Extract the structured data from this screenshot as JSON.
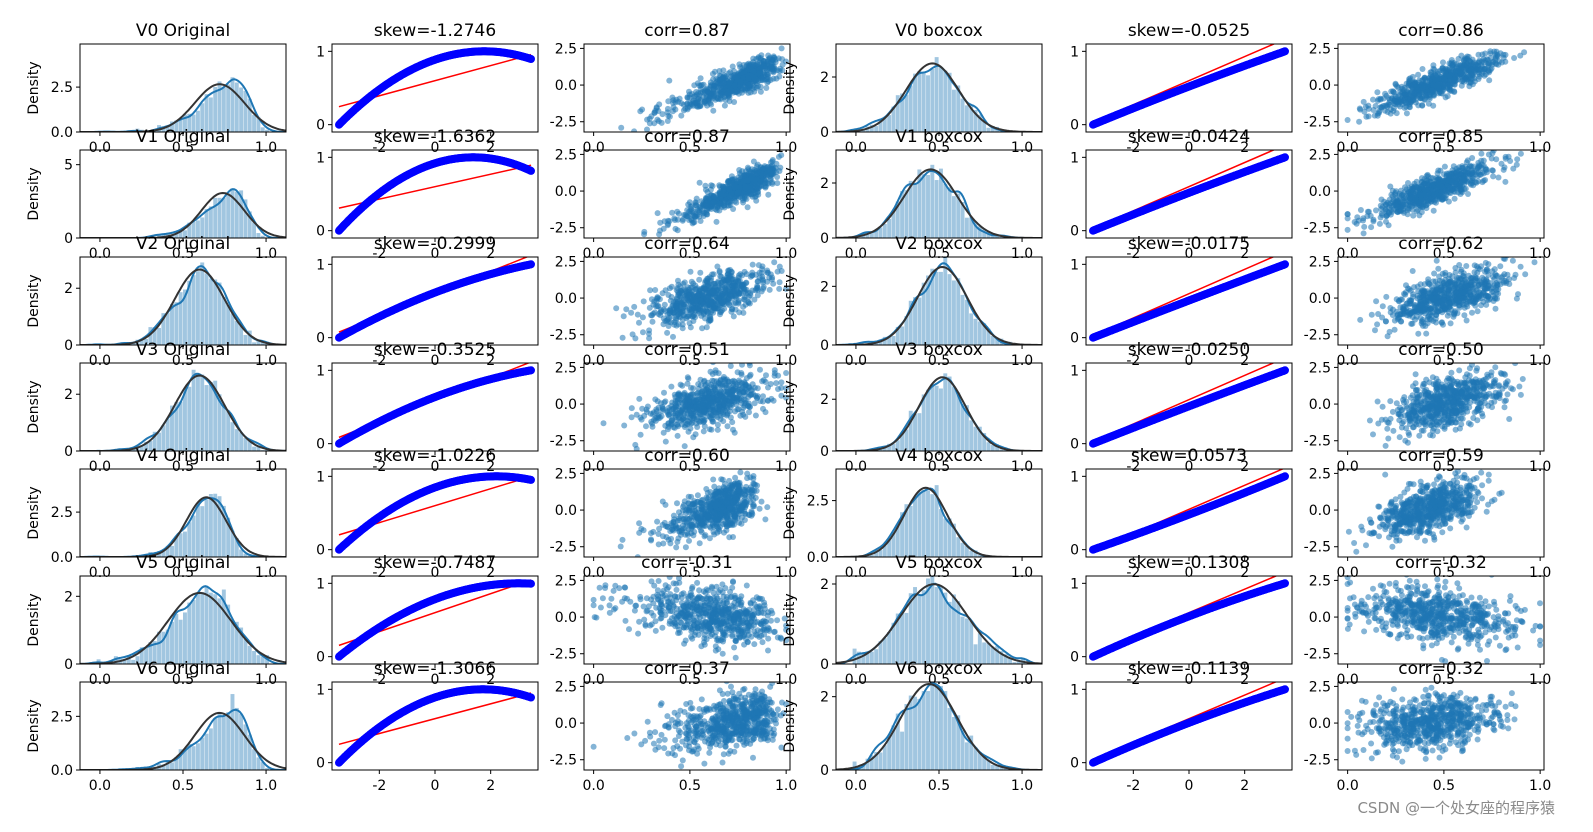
{
  "chart_data": {
    "type": "grid",
    "layout": {
      "rows": 7,
      "cols": 6
    },
    "variables": [
      "V0",
      "V1",
      "V2",
      "V3",
      "V4",
      "V5",
      "V6"
    ],
    "density_ylabel": "Density",
    "colors": {
      "hist": "#1f77b4",
      "kde": "#1f77b4",
      "norm_fit": "#333333",
      "qq_points": "#0000ff",
      "qq_line": "#ff0000",
      "scatter": "#1f77b4"
    },
    "column_types": [
      "hist_kde_norm",
      "probplot",
      "scatter",
      "hist_kde_norm",
      "probplot",
      "scatter"
    ],
    "rows": [
      {
        "var": "V0",
        "original": {
          "title": "V0 Original",
          "skew_title": "skew=-1.2746",
          "corr_title": "corr=0.87",
          "mean": 0.72,
          "std": 0.15,
          "skew": -1.2746,
          "corr": 0.87,
          "density_yticks": [
            "0.0",
            "2.5"
          ],
          "density_ymax": 4.9,
          "qq_yticks": [
            "0",
            "1"
          ],
          "scatter_yticks": [
            "-2.5",
            "0.0",
            "2.5"
          ],
          "xticks": [
            "0.0",
            "0.5",
            "1.0"
          ],
          "qq_xticks": [
            "-2",
            "0",
            "2"
          ]
        },
        "boxcox": {
          "title": "V0 boxcox",
          "skew_title": "skew=-0.0525",
          "corr_title": "corr=0.86",
          "mean": 0.46,
          "std": 0.16,
          "skew": -0.0525,
          "corr": 0.86,
          "density_yticks": [
            "0",
            "2"
          ],
          "density_ymax": 3.2,
          "qq_yticks": [
            "0",
            "1"
          ],
          "scatter_yticks": [
            "-2.5",
            "0.0",
            "2.5"
          ],
          "xticks": [
            "0.0",
            "0.5",
            "1.0"
          ],
          "qq_xticks": [
            "-2",
            "0",
            "2"
          ]
        }
      },
      {
        "var": "V1",
        "original": {
          "title": "V1 Original",
          "skew_title": "skew=-1.6362",
          "corr_title": "corr=0.87",
          "mean": 0.74,
          "std": 0.13,
          "skew": -1.6362,
          "corr": 0.87,
          "density_yticks": [
            "0",
            "5"
          ],
          "density_ymax": 6.0,
          "qq_yticks": [
            "0",
            "1"
          ],
          "scatter_yticks": [
            "-2.5",
            "0.0",
            "2.5"
          ],
          "xticks": [
            "0.0",
            "0.5",
            "1.0"
          ],
          "qq_xticks": [
            "-2",
            "0",
            "2"
          ]
        },
        "boxcox": {
          "title": "V1 boxcox",
          "skew_title": "skew=-0.0424",
          "corr_title": "corr=0.85",
          "mean": 0.45,
          "std": 0.16,
          "skew": -0.0424,
          "corr": 0.85,
          "density_yticks": [
            "0",
            "2"
          ],
          "density_ymax": 3.2,
          "qq_yticks": [
            "0",
            "1"
          ],
          "scatter_yticks": [
            "-2.5",
            "0.0",
            "2.5"
          ],
          "xticks": [
            "0.0",
            "0.5",
            "1.0"
          ],
          "qq_xticks": [
            "-2",
            "0",
            "2"
          ]
        }
      },
      {
        "var": "V2",
        "original": {
          "title": "V2 Original",
          "skew_title": "skew=-0.2999",
          "corr_title": "corr=0.64",
          "mean": 0.6,
          "std": 0.15,
          "skew": -0.2999,
          "corr": 0.64,
          "density_yticks": [
            "0",
            "2"
          ],
          "density_ymax": 3.1,
          "qq_yticks": [
            "0",
            "1"
          ],
          "scatter_yticks": [
            "-2.5",
            "0.0",
            "2.5"
          ],
          "xticks": [
            "0.0",
            "0.5",
            "1.0"
          ],
          "qq_xticks": [
            "-2",
            "0",
            "2"
          ]
        },
        "boxcox": {
          "title": "V2 boxcox",
          "skew_title": "skew=-0.0175",
          "corr_title": "corr=0.62",
          "mean": 0.52,
          "std": 0.15,
          "skew": -0.0175,
          "corr": 0.62,
          "density_yticks": [
            "0",
            "2"
          ],
          "density_ymax": 3.0,
          "qq_yticks": [
            "0",
            "1"
          ],
          "scatter_yticks": [
            "-2.5",
            "0.0",
            "2.5"
          ],
          "xticks": [
            "0.0",
            "0.5",
            "1.0"
          ],
          "qq_xticks": [
            "-2",
            "0",
            "2"
          ]
        }
      },
      {
        "var": "V3",
        "original": {
          "title": "V3 Original",
          "skew_title": "skew=-0.3525",
          "corr_title": "corr=0.51",
          "mean": 0.6,
          "std": 0.15,
          "skew": -0.3525,
          "corr": 0.51,
          "density_yticks": [
            "0",
            "2"
          ],
          "density_ymax": 3.1,
          "qq_yticks": [
            "0",
            "1"
          ],
          "scatter_yticks": [
            "-2.5",
            "0.0",
            "2.5"
          ],
          "xticks": [
            "0.0",
            "0.5",
            "1.0"
          ],
          "qq_xticks": [
            "-2",
            "0",
            "2"
          ]
        },
        "boxcox": {
          "title": "V3 boxcox",
          "skew_title": "skew=-0.0250",
          "corr_title": "corr=0.50",
          "mean": 0.52,
          "std": 0.14,
          "skew": -0.025,
          "corr": 0.5,
          "density_yticks": [
            "0",
            "2"
          ],
          "density_ymax": 3.4,
          "qq_yticks": [
            "0",
            "1"
          ],
          "scatter_yticks": [
            "-2.5",
            "0.0",
            "2.5"
          ],
          "xticks": [
            "0.0",
            "0.5",
            "1.0"
          ],
          "qq_xticks": [
            "-2",
            "0",
            "2"
          ]
        }
      },
      {
        "var": "V4",
        "original": {
          "title": "V4 Original",
          "skew_title": "skew=-1.0226",
          "corr_title": "corr=0.60",
          "mean": 0.64,
          "std": 0.12,
          "skew": -1.0226,
          "corr": 0.6,
          "density_yticks": [
            "0.0",
            "2.5"
          ],
          "density_ymax": 4.9,
          "qq_yticks": [
            "0",
            "1"
          ],
          "scatter_yticks": [
            "-2.5",
            "0.0",
            "2.5"
          ],
          "xticks": [
            "0.0",
            "0.5",
            "1.0"
          ],
          "qq_xticks": [
            "-2",
            "0",
            "2"
          ]
        },
        "boxcox": {
          "title": "V4 boxcox",
          "skew_title": "skew=0.0573",
          "corr_title": "corr=0.59",
          "mean": 0.42,
          "std": 0.13,
          "skew": 0.0573,
          "corr": 0.59,
          "density_yticks": [
            "0.0",
            "2.5"
          ],
          "density_ymax": 3.9,
          "qq_yticks": [
            "0",
            "1"
          ],
          "scatter_yticks": [
            "-2.5",
            "0.0",
            "2.5"
          ],
          "xticks": [
            "0.0",
            "0.5",
            "1.0"
          ],
          "qq_xticks": [
            "-2",
            "0",
            "2"
          ]
        }
      },
      {
        "var": "V5",
        "original": {
          "title": "V5 Original",
          "skew_title": "skew=-0.7487",
          "corr_title": "corr=-0.31",
          "mean": 0.6,
          "std": 0.19,
          "skew": -0.7487,
          "corr": -0.31,
          "density_yticks": [
            "0",
            "2"
          ],
          "density_ymax": 2.6,
          "qq_yticks": [
            "0",
            "1"
          ],
          "scatter_yticks": [
            "-2.5",
            "0.0",
            "2.5"
          ],
          "xticks": [
            "0.0",
            "0.5",
            "1.0"
          ],
          "qq_xticks": [
            "-2",
            "0",
            "2"
          ]
        },
        "boxcox": {
          "title": "V5 boxcox",
          "skew_title": "skew=-0.1308",
          "corr_title": "corr=-0.32",
          "mean": 0.47,
          "std": 0.2,
          "skew": -0.1308,
          "corr": -0.32,
          "density_yticks": [
            "0",
            "2"
          ],
          "density_ymax": 2.2,
          "qq_yticks": [
            "0",
            "1"
          ],
          "scatter_yticks": [
            "-2.5",
            "0.0",
            "2.5"
          ],
          "xticks": [
            "0.0",
            "0.5",
            "1.0"
          ],
          "qq_xticks": [
            "-2",
            "0",
            "2"
          ]
        }
      },
      {
        "var": "V6",
        "original": {
          "title": "V6 Original",
          "skew_title": "skew=-1.3066",
          "corr_title": "corr=0.37",
          "mean": 0.72,
          "std": 0.15,
          "skew": -1.3066,
          "corr": 0.37,
          "density_yticks": [
            "0.0",
            "2.5"
          ],
          "density_ymax": 4.1,
          "qq_yticks": [
            "0",
            "1"
          ],
          "scatter_yticks": [
            "-2.5",
            "0.0",
            "2.5"
          ],
          "xticks": [
            "0.0",
            "0.5",
            "1.0"
          ],
          "qq_xticks": [
            "-2",
            "0",
            "2"
          ]
        },
        "boxcox": {
          "title": "V6 boxcox",
          "skew_title": "skew=-0.1139",
          "corr_title": "corr=0.32",
          "mean": 0.44,
          "std": 0.17,
          "skew": -0.1139,
          "corr": 0.32,
          "density_yticks": [
            "0",
            "2"
          ],
          "density_ymax": 2.4,
          "qq_yticks": [
            "0",
            "1"
          ],
          "scatter_yticks": [
            "-2.5",
            "0.0",
            "2.5"
          ],
          "xticks": [
            "0.0",
            "0.5",
            "1.0"
          ],
          "qq_xticks": [
            "-2",
            "0",
            "2"
          ]
        }
      }
    ],
    "ranges": {
      "density_x": [
        -0.12,
        1.12
      ],
      "qq_x": [
        -3.7,
        3.7
      ],
      "qq_y": [
        -0.1,
        1.1
      ],
      "scatter_x": [
        -0.05,
        1.02
      ],
      "scatter_y": [
        -3.2,
        2.8
      ]
    }
  },
  "watermark": "CSDN @一个处女座的程序猿"
}
